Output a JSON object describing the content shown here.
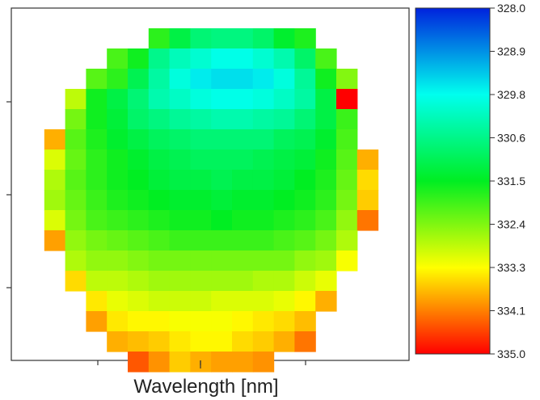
{
  "chart_data": {
    "type": "heatmap",
    "xlabel": "Wavelength [nm]",
    "ylabel": "",
    "grid": false,
    "colorbar": {
      "ticks": [
        "328.0",
        "328.9",
        "329.8",
        "330.6",
        "331.5",
        "332.4",
        "333.3",
        "334.1",
        "335.0"
      ],
      "range": [
        328.0,
        335.0
      ],
      "top_value": 328.0,
      "bottom_value": 335.0,
      "colors": {
        "328.0": "#0022dd",
        "329.8": "#00ffee",
        "331.5": "#00ee22",
        "333.3": "#ffff00",
        "335.0": "#ff0000"
      }
    },
    "grid_size": {
      "rows": 18,
      "cols": 17
    },
    "rows": [
      [
        null,
        null,
        null,
        null,
        null,
        null,
        331.8,
        331.2,
        330.8,
        330.7,
        330.7,
        330.9,
        331.4,
        331.7,
        null,
        null,
        null
      ],
      [
        null,
        null,
        null,
        null,
        332.0,
        331.6,
        330.6,
        330.2,
        330.0,
        329.8,
        329.8,
        330.0,
        330.3,
        330.9,
        332.0,
        null,
        null
      ],
      [
        null,
        null,
        null,
        332.1,
        331.8,
        331.1,
        330.4,
        329.9,
        329.6,
        329.5,
        329.5,
        329.6,
        329.9,
        330.5,
        331.6,
        332.4,
        null
      ],
      [
        null,
        null,
        332.8,
        331.6,
        331.2,
        330.8,
        330.3,
        330.1,
        329.9,
        329.8,
        329.8,
        329.9,
        330.1,
        330.4,
        331.2,
        335.0,
        null
      ],
      [
        null,
        null,
        332.3,
        331.6,
        331.3,
        330.9,
        330.7,
        330.5,
        330.4,
        330.3,
        330.3,
        330.4,
        330.5,
        330.8,
        331.2,
        331.9,
        null
      ],
      [
        null,
        333.8,
        332.1,
        331.7,
        331.4,
        331.2,
        331.0,
        330.9,
        330.8,
        330.8,
        330.8,
        330.8,
        331.0,
        331.1,
        331.4,
        332.0,
        null
      ],
      [
        null,
        333.0,
        332.2,
        331.8,
        331.6,
        331.4,
        331.2,
        331.1,
        331.0,
        331.0,
        331.0,
        331.1,
        331.2,
        331.3,
        331.6,
        332.1,
        333.8
      ],
      [
        null,
        332.7,
        332.1,
        331.8,
        331.6,
        331.5,
        331.3,
        331.2,
        331.2,
        331.1,
        331.2,
        331.2,
        331.3,
        331.5,
        331.7,
        332.2,
        333.5
      ],
      [
        null,
        332.6,
        332.2,
        331.9,
        331.7,
        331.6,
        331.5,
        331.4,
        331.4,
        331.3,
        331.4,
        331.4,
        331.5,
        331.6,
        331.8,
        332.3,
        333.6
      ],
      [
        null,
        333.0,
        332.3,
        332.0,
        331.9,
        331.8,
        331.7,
        331.6,
        331.6,
        331.5,
        331.6,
        331.6,
        331.7,
        331.8,
        332.0,
        332.5,
        334.2
      ],
      [
        null,
        333.9,
        332.5,
        332.3,
        332.2,
        332.1,
        332.0,
        331.9,
        331.9,
        331.9,
        331.9,
        331.9,
        332.0,
        332.1,
        332.3,
        332.7,
        null
      ],
      [
        null,
        null,
        332.7,
        332.5,
        332.5,
        332.4,
        332.3,
        332.3,
        332.3,
        332.3,
        332.3,
        332.3,
        332.3,
        332.5,
        332.6,
        333.2,
        null
      ],
      [
        null,
        null,
        333.5,
        332.8,
        332.8,
        332.7,
        332.6,
        332.6,
        332.6,
        332.6,
        332.6,
        332.7,
        332.7,
        332.9,
        333.1,
        null,
        null
      ],
      [
        null,
        null,
        null,
        333.4,
        333.1,
        333.0,
        332.9,
        332.9,
        332.9,
        333.0,
        333.0,
        333.0,
        333.1,
        333.3,
        333.8,
        null,
        null
      ],
      [
        null,
        null,
        null,
        333.9,
        333.4,
        333.3,
        333.3,
        333.2,
        333.2,
        333.2,
        333.3,
        333.4,
        333.5,
        333.7,
        null,
        null,
        null
      ],
      [
        null,
        null,
        null,
        null,
        333.8,
        333.7,
        333.6,
        333.4,
        333.3,
        333.3,
        333.5,
        333.6,
        333.8,
        334.2,
        null,
        null,
        null
      ],
      [
        null,
        null,
        null,
        null,
        null,
        334.4,
        334.0,
        333.6,
        333.8,
        333.9,
        333.9,
        334.0,
        null,
        null,
        null,
        null,
        null
      ],
      [
        null,
        null,
        null,
        null,
        null,
        null,
        null,
        null,
        null,
        null,
        null,
        null,
        null,
        null,
        null,
        null,
        null
      ]
    ]
  }
}
